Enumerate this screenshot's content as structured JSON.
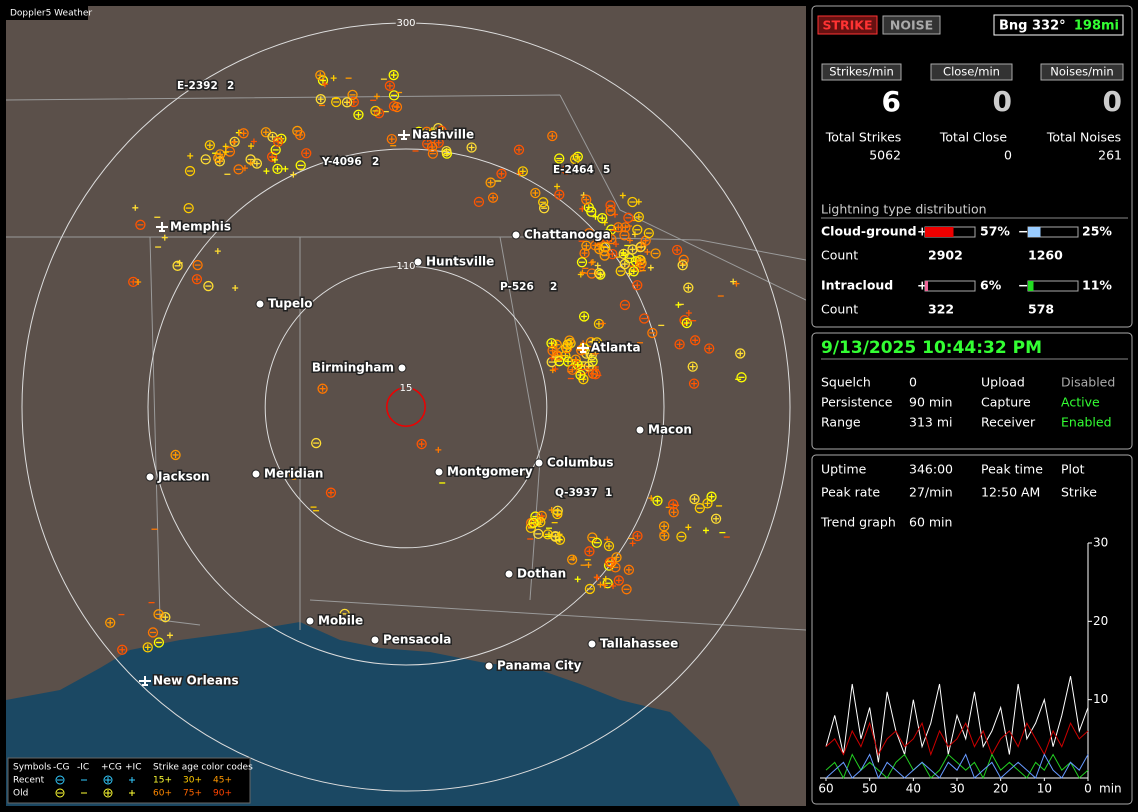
{
  "title": "Doppler5 Weather",
  "map": {
    "range_labels": [
      15,
      110,
      300
    ],
    "cities": [
      {
        "name": "Nashville",
        "airport": true
      },
      {
        "name": "Memphis",
        "airport": true
      },
      {
        "name": "Chattanooga",
        "airport": false
      },
      {
        "name": "Huntsville",
        "airport": false
      },
      {
        "name": "Tupelo",
        "airport": false
      },
      {
        "name": "Birmingham",
        "airport": false
      },
      {
        "name": "Atlanta",
        "airport": true
      },
      {
        "name": "Macon",
        "airport": false
      },
      {
        "name": "Columbus",
        "airport": false
      },
      {
        "name": "Montgomery",
        "airport": false
      },
      {
        "name": "Meridian",
        "airport": false
      },
      {
        "name": "Jackson",
        "airport": false
      },
      {
        "name": "Dothan",
        "airport": false
      },
      {
        "name": "Mobile",
        "airport": false
      },
      {
        "name": "Pensacola",
        "airport": false
      },
      {
        "name": "Panama City",
        "airport": false
      },
      {
        "name": "Tallahassee",
        "airport": false
      },
      {
        "name": "New Orleans",
        "airport": true
      }
    ],
    "storm_cells": [
      {
        "id": "E-2392",
        "count": 2
      },
      {
        "id": "Y-4096",
        "count": 2
      },
      {
        "id": "E-2464",
        "count": 5
      },
      {
        "id": "P-526",
        "count": 2
      },
      {
        "id": "Q-3937",
        "count": 1
      }
    ]
  },
  "legend": {
    "symbols_label": "Symbols",
    "symbols": [
      "-CG",
      "-IC",
      "+CG",
      "+IC"
    ],
    "rows": [
      "Recent",
      "Old"
    ],
    "age_title": "Strike age color codes",
    "ages": [
      {
        "label": "15+",
        "color": "#ffff33"
      },
      {
        "label": "30+",
        "color": "#ffcc00"
      },
      {
        "label": "45+",
        "color": "#ff9900"
      },
      {
        "label": "60+",
        "color": "#ff8800"
      },
      {
        "label": "75+",
        "color": "#ff6600"
      },
      {
        "label": "90+",
        "color": "#ff4400"
      }
    ]
  },
  "status": {
    "buttons": [
      "STRIKE",
      "NOISE"
    ],
    "bearing": "Bng 332°",
    "distance": "198mi",
    "rates": [
      {
        "label": "Strikes/min",
        "value": 6
      },
      {
        "label": "Close/min",
        "value": 0
      },
      {
        "label": "Noises/min",
        "value": 0
      }
    ],
    "totals": [
      {
        "label": "Total Strikes",
        "value": 5062
      },
      {
        "label": "Total Close",
        "value": 0
      },
      {
        "label": "Total Noises",
        "value": 261
      }
    ]
  },
  "distribution": {
    "title": "Lightning type distribution",
    "plus_sign": "+",
    "minus_sign": "−",
    "count_label": "Count",
    "rows": [
      {
        "label": "Cloud-ground",
        "plus": {
          "value": 57,
          "label": "57%"
        },
        "minus": {
          "value": 25,
          "label": "25%"
        },
        "plus_count": 2902,
        "minus_count": 1260,
        "plus_color": "#ee0000",
        "minus_color": "#99ccff"
      },
      {
        "label": "Intracloud",
        "plus": {
          "value": 6,
          "label": "6%"
        },
        "minus": {
          "value": 11,
          "label": "11%"
        },
        "plus_count": 322,
        "minus_count": 578,
        "plus_color": "#ee6699",
        "minus_color": "#22dd22"
      }
    ]
  },
  "settings": {
    "datetime": "9/13/2025 10:44:32 PM",
    "rows": [
      [
        "Squelch",
        "0",
        "Upload",
        "Disabled"
      ],
      [
        "Persistence",
        "90 min",
        "Capture",
        "Active"
      ],
      [
        "Range",
        "313 mi",
        "Receiver",
        "Enabled"
      ]
    ]
  },
  "stats": {
    "rows": [
      [
        "Uptime",
        "346:00",
        "Peak time",
        "Plot"
      ],
      [
        "Peak rate",
        "27/min",
        "12:50 AM",
        "Strike"
      ],
      [
        "Trend graph",
        "60 min"
      ]
    ]
  },
  "chart_data": {
    "type": "line",
    "x_unit": "min",
    "xlim": [
      60,
      0
    ],
    "ylim": [
      0,
      30
    ],
    "xticks": [
      60,
      50,
      40,
      30,
      20,
      10,
      0
    ],
    "yticks": [
      10,
      20,
      30
    ],
    "x": [
      60,
      58,
      56,
      54,
      52,
      50,
      48,
      46,
      44,
      42,
      40,
      38,
      36,
      34,
      32,
      30,
      28,
      26,
      24,
      22,
      20,
      18,
      16,
      14,
      12,
      10,
      8,
      6,
      4,
      2,
      0
    ],
    "series": [
      {
        "color": "#ffffff",
        "values": [
          4,
          8,
          3,
          12,
          5,
          9,
          2,
          11,
          6,
          3,
          10,
          4,
          7,
          12,
          3,
          8,
          5,
          11,
          4,
          6,
          9,
          3,
          12,
          5,
          7,
          10,
          4,
          8,
          13,
          6,
          9
        ]
      },
      {
        "color": "#cc0000",
        "values": [
          4,
          5,
          3,
          6,
          4,
          7,
          3,
          5,
          6,
          4,
          5,
          7,
          3,
          6,
          4,
          5,
          7,
          4,
          6,
          3,
          5,
          6,
          4,
          7,
          5,
          3,
          6,
          4,
          7,
          5,
          6
        ]
      },
      {
        "color": "#22cc22",
        "values": [
          1,
          2,
          0,
          3,
          1,
          2,
          1,
          0,
          2,
          3,
          1,
          2,
          0,
          1,
          3,
          2,
          1,
          2,
          0,
          3,
          1,
          2,
          1,
          0,
          2,
          1,
          3,
          1,
          2,
          0,
          1
        ]
      },
      {
        "color": "#6699ff",
        "values": [
          0,
          1,
          2,
          0,
          1,
          3,
          0,
          2,
          1,
          0,
          1,
          2,
          1,
          0,
          2,
          1,
          3,
          0,
          1,
          2,
          0,
          1,
          2,
          1,
          0,
          3,
          1,
          0,
          2,
          1,
          3
        ]
      }
    ]
  }
}
